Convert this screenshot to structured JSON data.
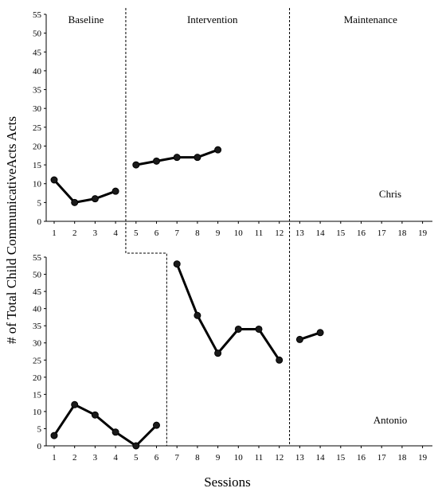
{
  "chart_data": [
    {
      "type": "line",
      "participant": "Chris",
      "ylim": [
        0,
        55
      ],
      "yticks": [
        0,
        5,
        10,
        15,
        20,
        25,
        30,
        35,
        40,
        45,
        50,
        55
      ],
      "xticks": [
        1,
        2,
        3,
        4,
        5,
        6,
        7,
        8,
        9,
        10,
        11,
        12,
        13,
        14,
        15,
        16,
        17,
        18,
        19
      ],
      "phase_labels": [
        "Baseline",
        "Intervention",
        "Maintenance"
      ],
      "phase_change_after": [
        4.5,
        12.5
      ],
      "segments": [
        {
          "phase": "Baseline",
          "x": [
            1,
            2,
            3,
            4
          ],
          "y": [
            11,
            5,
            6,
            8
          ]
        },
        {
          "phase": "Intervention",
          "x": [
            5,
            6,
            7,
            8,
            9
          ],
          "y": [
            15,
            16,
            17,
            17,
            19
          ]
        }
      ]
    },
    {
      "type": "line",
      "participant": "Antonio",
      "ylim": [
        0,
        55
      ],
      "yticks": [
        0,
        5,
        10,
        15,
        20,
        25,
        30,
        35,
        40,
        45,
        50,
        55
      ],
      "xticks": [
        1,
        2,
        3,
        4,
        5,
        6,
        7,
        8,
        9,
        10,
        11,
        12,
        13,
        14,
        15,
        16,
        17,
        18,
        19
      ],
      "phase_change_after": [
        6.5,
        12.5
      ],
      "segments": [
        {
          "phase": "Baseline",
          "x": [
            1,
            2,
            3,
            4,
            5,
            6
          ],
          "y": [
            3,
            12,
            9,
            4,
            0,
            6
          ]
        },
        {
          "phase": "Intervention",
          "x": [
            7,
            8,
            9,
            10,
            11,
            12
          ],
          "y": [
            53,
            38,
            27,
            34,
            34,
            25
          ]
        },
        {
          "phase": "Maintenance",
          "x": [
            13,
            14
          ],
          "y": [
            31,
            33
          ]
        }
      ]
    }
  ],
  "ylabel": "# of Total Child CommunicativeActs Acts",
  "xlabel": "Sessions"
}
